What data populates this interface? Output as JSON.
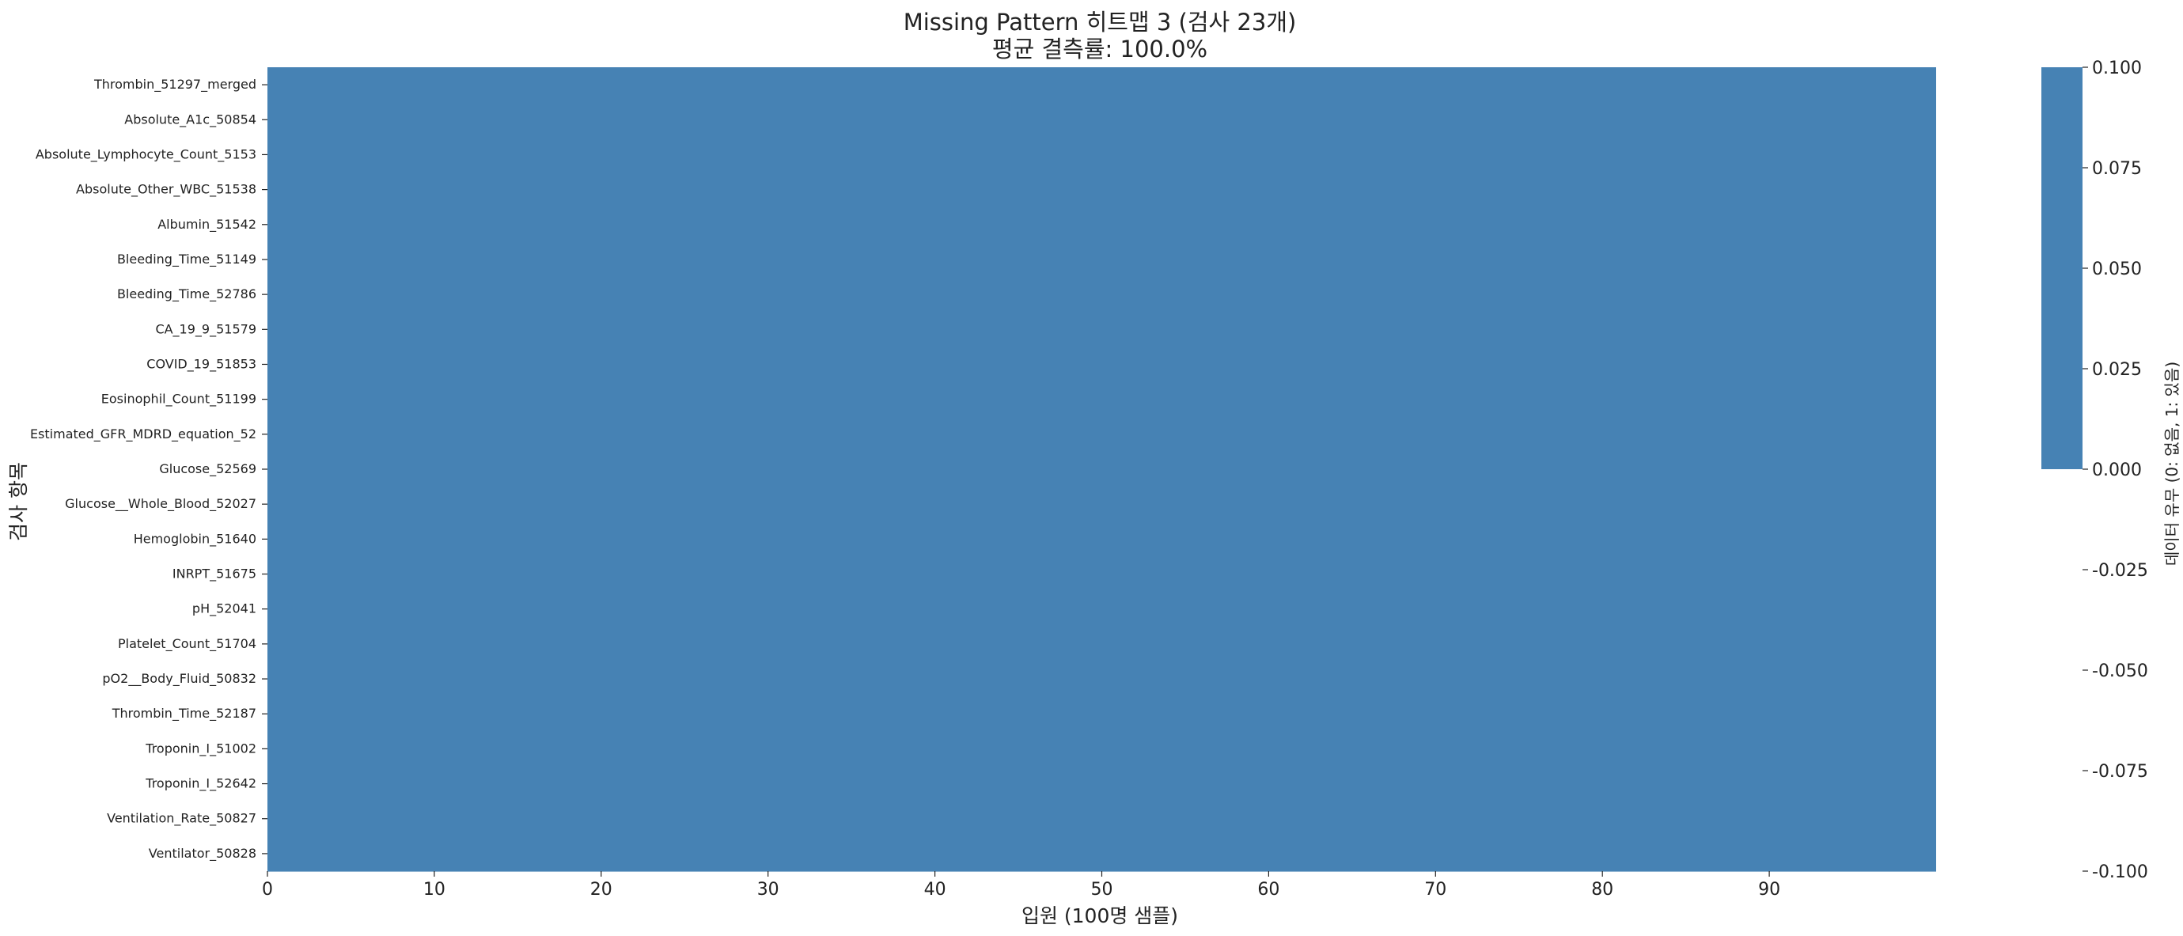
{
  "chart_data": {
    "type": "heatmap",
    "title": "Missing Pattern 히트맵 3 (검사 23개)",
    "subtitle": "평균 결측률: 100.0%",
    "xlabel": "입원 (100명 샘플)",
    "ylabel": "검사 항목",
    "colorbar_label": "데이터 유무 (0: 없음, 1: 있음)",
    "cell_color": "#4682b4",
    "n_columns": 100,
    "x_ticks": [
      0,
      10,
      20,
      30,
      40,
      50,
      60,
      70,
      80,
      90
    ],
    "rows": [
      "Thrombin_51297_merged",
      "Absolute_A1c_50854",
      "Absolute_Lymphocyte_Count_5153",
      "Absolute_Other_WBC_51538",
      "Albumin_51542",
      "Bleeding_Time_51149",
      "Bleeding_Time_52786",
      "CA_19_9_51579",
      "COVID_19_51853",
      "Eosinophil_Count_51199",
      "Estimated_GFR_MDRD_equation_52",
      "Glucose_52569",
      "Glucose__Whole_Blood_52027",
      "Hemoglobin_51640",
      "INRPT_51675",
      "pH_52041",
      "Platelet_Count_51704",
      "pO2__Body_Fluid_50832",
      "Thrombin_Time_52187",
      "Troponin_I_51002",
      "Troponin_I_52642",
      "Ventilation_Rate_50827",
      "Ventilator_50828"
    ],
    "value": 0,
    "colorbar_range": [
      -0.1,
      0.1
    ],
    "colorbar_filled_range": [
      0.0,
      0.1
    ],
    "colorbar_ticks": [
      "0.100",
      "0.075",
      "0.050",
      "0.025",
      "0.000",
      "-0.025",
      "-0.050",
      "-0.075",
      "-0.100"
    ],
    "grid": false,
    "legend": "colorbar-right"
  }
}
